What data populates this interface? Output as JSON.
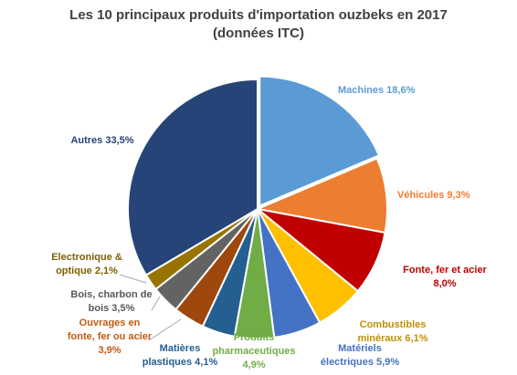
{
  "chart_data": {
    "type": "pie",
    "title_line1": "Les 10 principaux produits d'importation ouzbeks en 2017",
    "title_line2": "(données ITC)",
    "slices": [
      {
        "name": "Machines",
        "value": 18.6,
        "label_lines": [
          "Machines  18,6%"
        ],
        "color": "#5B9BD5"
      },
      {
        "name": "Véhicules",
        "value": 9.3,
        "label_lines": [
          "Véhicules  9,3%"
        ],
        "color": "#ED7D31"
      },
      {
        "name": "Fonte, fer et acier",
        "value": 8.0,
        "label_lines": [
          "Fonte, fer et acier",
          "8,0%"
        ],
        "color": "#C00000"
      },
      {
        "name": "Combustibles minéraux",
        "value": 6.1,
        "label_lines": [
          "Combustibles",
          "minéraux  6,1%"
        ],
        "color": "#FFC000"
      },
      {
        "name": "Matériels électriques",
        "value": 5.9,
        "label_lines": [
          "Matériels",
          "électriques  5,9%"
        ],
        "color": "#4472C4"
      },
      {
        "name": "Produits pharmaceutiques",
        "value": 4.9,
        "label_lines": [
          "Produits",
          "pharmaceutiques",
          "4,9%"
        ],
        "color": "#70AD47"
      },
      {
        "name": "Matières plastiques",
        "value": 4.1,
        "label_lines": [
          "Matières",
          "plastiques  4,1%"
        ],
        "color": "#255E91"
      },
      {
        "name": "Ouvrages en fonte, fer ou acier",
        "value": 3.9,
        "label_lines": [
          "Ouvrages en",
          "fonte, fer ou acier",
          "3,9%"
        ],
        "color": "#9E480E"
      },
      {
        "name": "Bois, charbon de bois",
        "value": 3.5,
        "label_lines": [
          "Bois, charbon de",
          "bois  3,5%"
        ],
        "color": "#636363"
      },
      {
        "name": "Electronique & optique",
        "value": 2.1,
        "label_lines": [
          "Electronique &",
          "optique  2,1%"
        ],
        "color": "#997300"
      },
      {
        "name": "Autres",
        "value": 33.5,
        "label_lines": [
          "Autres  33,5%"
        ],
        "color": "#264478"
      }
    ]
  }
}
